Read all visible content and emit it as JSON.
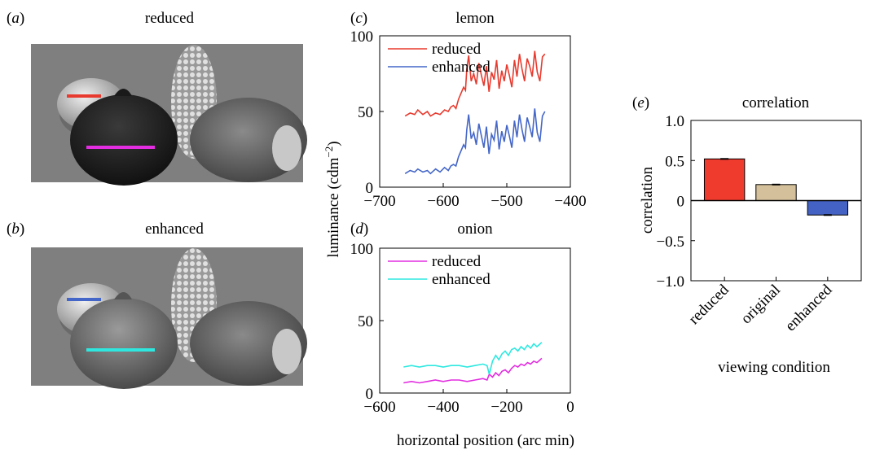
{
  "panel_a": {
    "letter": "a",
    "title": "reduced",
    "line_colors": [
      "#e83a2e",
      "#e22ee0"
    ]
  },
  "panel_b": {
    "letter": "b",
    "title": "enhanced",
    "line_colors": [
      "#4466c8",
      "#2ee8e0"
    ]
  },
  "chart_data": [
    {
      "type": "line",
      "panel": "c",
      "title": "lemon",
      "xlim": [
        -700,
        -400
      ],
      "ylim": [
        0,
        100
      ],
      "xticks": [
        -700,
        -600,
        -500,
        -400
      ],
      "yticks": [
        0,
        50,
        100
      ],
      "legend": "top-left",
      "grid": false,
      "series": [
        {
          "name": "reduced",
          "color": "#e83a2e",
          "x": [
            -660,
            -652,
            -645,
            -640,
            -632,
            -625,
            -620,
            -612,
            -605,
            -598,
            -592,
            -588,
            -584,
            -580,
            -576,
            -572,
            -568,
            -565,
            -563,
            -560,
            -556,
            -552,
            -548,
            -544,
            -540,
            -536,
            -532,
            -528,
            -524,
            -520,
            -516,
            -512,
            -508,
            -504,
            -500,
            -496,
            -492,
            -488,
            -484,
            -480,
            -476,
            -472,
            -468,
            -464,
            -460,
            -456,
            -452,
            -448,
            -444,
            -440
          ],
          "y": [
            47,
            49,
            48,
            51,
            48,
            50,
            47,
            49,
            48,
            51,
            50,
            53,
            54,
            52,
            58,
            62,
            66,
            64,
            78,
            87,
            70,
            75,
            68,
            82,
            74,
            67,
            80,
            63,
            76,
            71,
            84,
            65,
            77,
            70,
            81,
            74,
            66,
            84,
            73,
            88,
            78,
            70,
            85,
            80,
            73,
            90,
            76,
            70,
            86,
            88
          ]
        },
        {
          "name": "enhanced",
          "color": "#4466c8",
          "x": [
            -660,
            -652,
            -645,
            -640,
            -632,
            -625,
            -620,
            -612,
            -605,
            -598,
            -592,
            -588,
            -584,
            -580,
            -576,
            -572,
            -568,
            -565,
            -563,
            -560,
            -556,
            -552,
            -548,
            -544,
            -540,
            -536,
            -532,
            -528,
            -524,
            -520,
            -516,
            -512,
            -508,
            -504,
            -500,
            -496,
            -492,
            -488,
            -484,
            -480,
            -476,
            -472,
            -468,
            -464,
            -460,
            -456,
            -452,
            -448,
            -444,
            -440
          ],
          "y": [
            9,
            11,
            10,
            12,
            10,
            11,
            9,
            12,
            10,
            13,
            11,
            14,
            15,
            14,
            20,
            24,
            28,
            26,
            38,
            48,
            32,
            36,
            28,
            42,
            34,
            26,
            40,
            22,
            35,
            31,
            44,
            25,
            37,
            30,
            41,
            34,
            26,
            44,
            33,
            48,
            38,
            30,
            46,
            40,
            33,
            52,
            36,
            30,
            47,
            50
          ]
        }
      ]
    },
    {
      "type": "line",
      "panel": "d",
      "title": "onion",
      "xlabel": "horizontal position (arc min)",
      "xlim": [
        -600,
        0
      ],
      "ylim": [
        0,
        100
      ],
      "xticks": [
        -600,
        -400,
        -200,
        0
      ],
      "yticks": [
        0,
        50,
        100
      ],
      "legend": "top-left",
      "grid": false,
      "series": [
        {
          "name": "reduced",
          "color": "#e22ee0",
          "x": [
            -525,
            -500,
            -475,
            -450,
            -425,
            -400,
            -375,
            -350,
            -325,
            -300,
            -275,
            -262,
            -255,
            -245,
            -235,
            -225,
            -215,
            -205,
            -195,
            -185,
            -175,
            -165,
            -155,
            -145,
            -135,
            -125,
            -115,
            -105,
            -95,
            -90
          ],
          "y": [
            7,
            8,
            7,
            8,
            9,
            8,
            9,
            9,
            8,
            9,
            10,
            9,
            13,
            11,
            14,
            12,
            15,
            16,
            14,
            17,
            19,
            18,
            20,
            19,
            21,
            20,
            22,
            21,
            23,
            24
          ]
        },
        {
          "name": "enhanced",
          "color": "#2ee8e0",
          "x": [
            -525,
            -500,
            -475,
            -450,
            -425,
            -400,
            -375,
            -350,
            -325,
            -300,
            -275,
            -262,
            -255,
            -245,
            -235,
            -225,
            -215,
            -205,
            -195,
            -185,
            -175,
            -165,
            -155,
            -145,
            -135,
            -125,
            -115,
            -105,
            -95,
            -90
          ],
          "y": [
            18,
            19,
            18,
            19,
            19,
            18,
            19,
            19,
            18,
            19,
            20,
            19,
            13,
            22,
            26,
            23,
            27,
            29,
            26,
            30,
            31,
            29,
            32,
            30,
            33,
            31,
            34,
            32,
            34,
            35
          ]
        }
      ]
    },
    {
      "type": "bar",
      "panel": "e",
      "title": "correlation",
      "xlabel": "viewing condition",
      "ylabel": "correlation",
      "ylim": [
        -1,
        1
      ],
      "yticks": [
        -1.0,
        -0.5,
        0,
        0.5,
        1.0
      ],
      "yticklabels": [
        "−1.0",
        "−0.5",
        "0",
        "0.5",
        "1.0"
      ],
      "categories": [
        "reduced",
        "original",
        "enhanced"
      ],
      "values": [
        0.52,
        0.2,
        -0.18
      ],
      "colors": [
        "#ef3a2e",
        "#d4c09a",
        "#4462c4"
      ]
    }
  ],
  "shared_ylabel": "luminance (cdm",
  "shared_ylabel_sup": "−2",
  "shared_ylabel_end": ")"
}
